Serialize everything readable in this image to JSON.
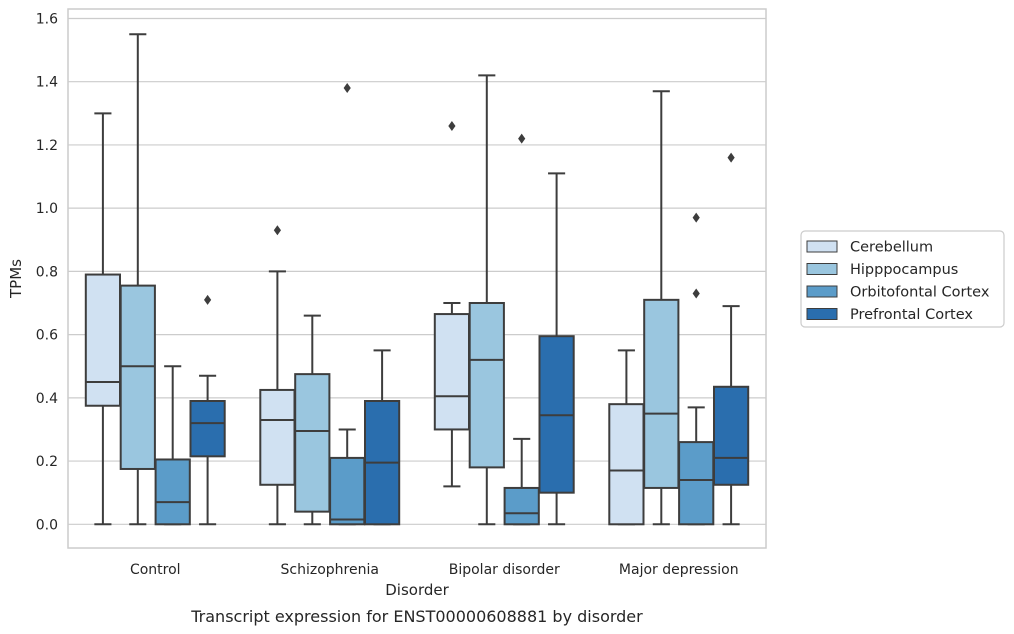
{
  "chart_data": {
    "type": "box",
    "categories": [
      "Control",
      "Schizophrenia",
      "Bipolar disorder",
      "Major depression"
    ],
    "xlabel": "Disorder",
    "ylabel": "TPMs",
    "caption": "Transcript expression for ENST00000608881 by disorder",
    "ylim": [
      -0.075,
      1.63
    ],
    "yticks": [
      "0.0",
      "0.2",
      "0.4",
      "0.6",
      "0.8",
      "1.0",
      "1.2",
      "1.4",
      "1.6"
    ],
    "grid": "horizontal",
    "legend_position": "right",
    "series": [
      {
        "name": "Cerebellum",
        "color": "#d0e1f2",
        "boxes": [
          {
            "whisker_low": 0.0,
            "q1": 0.375,
            "median": 0.45,
            "q3": 0.79,
            "whisker_high": 1.3,
            "outliers": []
          },
          {
            "whisker_low": 0.0,
            "q1": 0.125,
            "median": 0.33,
            "q3": 0.425,
            "whisker_high": 0.8,
            "outliers": [
              0.93
            ]
          },
          {
            "whisker_low": 0.12,
            "q1": 0.3,
            "median": 0.405,
            "q3": 0.665,
            "whisker_high": 0.7,
            "outliers": [
              1.26
            ]
          },
          {
            "whisker_low": 0.0,
            "q1": 0.0,
            "median": 0.17,
            "q3": 0.38,
            "whisker_high": 0.55,
            "outliers": []
          }
        ]
      },
      {
        "name": "Hipppocampus",
        "color": "#9ac6df",
        "boxes": [
          {
            "whisker_low": 0.0,
            "q1": 0.175,
            "median": 0.5,
            "q3": 0.755,
            "whisker_high": 1.55,
            "outliers": []
          },
          {
            "whisker_low": 0.0,
            "q1": 0.04,
            "median": 0.295,
            "q3": 0.475,
            "whisker_high": 0.66,
            "outliers": []
          },
          {
            "whisker_low": 0.0,
            "q1": 0.18,
            "median": 0.52,
            "q3": 0.7,
            "whisker_high": 1.42,
            "outliers": []
          },
          {
            "whisker_low": 0.0,
            "q1": 0.115,
            "median": 0.35,
            "q3": 0.71,
            "whisker_high": 1.37,
            "outliers": []
          }
        ]
      },
      {
        "name": "Orbitofontal Cortex",
        "color": "#5b9cc9",
        "boxes": [
          {
            "whisker_low": 0.0,
            "q1": 0.0,
            "median": 0.07,
            "q3": 0.205,
            "whisker_high": 0.5,
            "outliers": []
          },
          {
            "whisker_low": 0.0,
            "q1": 0.0,
            "median": 0.015,
            "q3": 0.21,
            "whisker_high": 0.3,
            "outliers": [
              1.38
            ]
          },
          {
            "whisker_low": 0.0,
            "q1": 0.0,
            "median": 0.035,
            "q3": 0.115,
            "whisker_high": 0.27,
            "outliers": [
              1.22
            ]
          },
          {
            "whisker_low": 0.0,
            "q1": 0.0,
            "median": 0.14,
            "q3": 0.26,
            "whisker_high": 0.37,
            "outliers": [
              0.73,
              0.97
            ]
          }
        ]
      },
      {
        "name": "Prefrontal Cortex",
        "color": "#2a6eae",
        "boxes": [
          {
            "whisker_low": 0.0,
            "q1": 0.215,
            "median": 0.32,
            "q3": 0.39,
            "whisker_high": 0.47,
            "outliers": [
              0.71
            ]
          },
          {
            "whisker_low": 0.0,
            "q1": 0.0,
            "median": 0.195,
            "q3": 0.39,
            "whisker_high": 0.55,
            "outliers": []
          },
          {
            "whisker_low": 0.0,
            "q1": 0.1,
            "median": 0.345,
            "q3": 0.595,
            "whisker_high": 1.11,
            "outliers": []
          },
          {
            "whisker_low": 0.0,
            "q1": 0.125,
            "median": 0.21,
            "q3": 0.435,
            "whisker_high": 0.69,
            "outliers": [
              1.16
            ]
          }
        ]
      }
    ]
  }
}
